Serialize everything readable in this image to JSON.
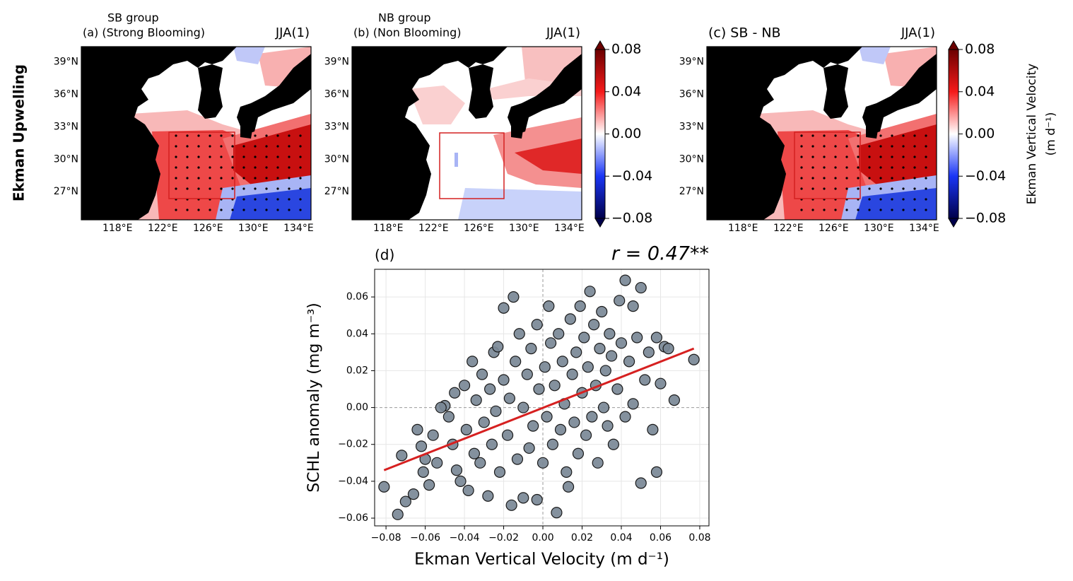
{
  "row_label": "Ekman Upwelling",
  "chart_data": [
    {
      "type": "map",
      "group": "SB group",
      "title": "(a) (Strong Blooming)",
      "season": "JJA(1)",
      "xlim": [
        114.8,
        135.1
      ],
      "ylim": [
        24.4,
        40.4
      ],
      "xticks": [
        {
          "value": 118,
          "label": "118°E"
        },
        {
          "value": 122,
          "label": "122°E"
        },
        {
          "value": 126,
          "label": "126°E"
        },
        {
          "value": 130,
          "label": "130°E"
        },
        {
          "value": 134,
          "label": "134°E"
        }
      ],
      "yticks": [
        {
          "value": 27,
          "label": "27°N"
        },
        {
          "value": 30,
          "label": "30°N"
        },
        {
          "value": 33,
          "label": "33°N"
        },
        {
          "value": 36,
          "label": "36°N"
        },
        {
          "value": 39,
          "label": "39°N"
        }
      ]
    },
    {
      "type": "map",
      "group": "NB group",
      "title": "(b) (Non Blooming)",
      "season": "JJA(1)",
      "xlim": [
        114.8,
        135.1
      ],
      "ylim": [
        24.4,
        40.4
      ],
      "xticks": [
        {
          "value": 118,
          "label": "118°E"
        },
        {
          "value": 122,
          "label": "122°E"
        },
        {
          "value": 126,
          "label": "126°E"
        },
        {
          "value": 130,
          "label": "130°E"
        },
        {
          "value": 134,
          "label": "134°E"
        }
      ],
      "yticks": [
        {
          "value": 27,
          "label": "27°N"
        },
        {
          "value": 30,
          "label": "30°N"
        },
        {
          "value": 33,
          "label": "33°N"
        },
        {
          "value": 36,
          "label": "36°N"
        },
        {
          "value": 39,
          "label": "39°N"
        }
      ]
    },
    {
      "type": "colorbar",
      "ylim": [
        -0.08,
        0.08
      ],
      "yticks": [
        {
          "value": -0.08,
          "label": "−0.08"
        },
        {
          "value": -0.04,
          "label": "−0.04"
        },
        {
          "value": 0,
          "label": "0.00"
        },
        0.04,
        0.08
      ]
    },
    {
      "type": "map",
      "title": "(c) SB - NB",
      "season": "JJA(1)",
      "xlim": [
        114.8,
        135.1
      ],
      "ylim": [
        24.4,
        40.4
      ],
      "xticks": [
        {
          "value": 118,
          "label": "118°E"
        },
        {
          "value": 122,
          "label": "122°E"
        },
        {
          "value": 126,
          "label": "126°E"
        },
        {
          "value": 130,
          "label": "130°E"
        },
        {
          "value": 134,
          "label": "134°E"
        }
      ],
      "yticks": [
        {
          "value": 27,
          "label": "27°N"
        },
        {
          "value": 30,
          "label": "30°N"
        },
        {
          "value": 33,
          "label": "33°N"
        },
        {
          "value": 36,
          "label": "36°N"
        },
        {
          "value": 39,
          "label": "39°N"
        }
      ]
    },
    {
      "type": "colorbar",
      "ylim": [
        -0.08,
        0.08
      ],
      "label": [
        "Ekman Vertical Velocity",
        "(m d⁻¹)"
      ],
      "yticks": [
        {
          "value": -0.08,
          "label": "−0.08"
        },
        {
          "value": -0.04,
          "label": "−0.04"
        },
        {
          "value": 0,
          "label": "0.00"
        },
        0.04,
        0.08
      ]
    },
    {
      "type": "scatter",
      "title": "(d)",
      "annotation": "r = 0.47**",
      "x_label": "Ekman Vertical Velocity (m d⁻¹)",
      "y_label": "SCHL anomaly (mg m⁻³)",
      "color": "#7a8896",
      "fit_color": "#d62020",
      "grid": true,
      "xlim": [
        -0.0858,
        0.0847
      ],
      "ylim": [
        -0.0642,
        0.075
      ],
      "xticks": [
        {
          "value": -0.08,
          "label": "−0.08"
        },
        {
          "value": -0.06,
          "label": "−0.06"
        },
        {
          "value": -0.04,
          "label": "−0.04"
        },
        {
          "value": -0.02,
          "label": "−0.02"
        },
        {
          "value": 0,
          "label": "0.00"
        },
        0.02,
        0.04,
        0.06,
        0.08
      ],
      "yticks": [
        {
          "value": -0.06,
          "label": "−0.06"
        },
        {
          "value": -0.04,
          "label": "−0.04"
        },
        {
          "value": -0.02,
          "label": "−0.02"
        },
        {
          "value": 0,
          "label": "0.00"
        },
        0.02,
        0.04,
        0.06
      ],
      "x": [
        -0.081,
        -0.074,
        -0.07,
        -0.066,
        -0.061,
        -0.072,
        -0.058,
        -0.05,
        -0.052,
        -0.064,
        -0.062,
        -0.06,
        -0.056,
        -0.054,
        -0.048,
        -0.046,
        -0.045,
        -0.044,
        -0.042,
        -0.04,
        -0.039,
        -0.038,
        -0.036,
        -0.035,
        -0.034,
        -0.032,
        -0.031,
        -0.03,
        -0.028,
        -0.027,
        -0.026,
        -0.025,
        -0.024,
        -0.023,
        -0.022,
        -0.02,
        -0.02,
        -0.018,
        -0.017,
        -0.016,
        -0.015,
        -0.014,
        -0.013,
        -0.012,
        -0.01,
        -0.01,
        -0.008,
        -0.007,
        -0.006,
        -0.005,
        -0.003,
        -0.003,
        -0.002,
        0.0,
        0.001,
        0.002,
        0.003,
        0.004,
        0.005,
        0.006,
        0.007,
        0.008,
        0.009,
        0.01,
        0.011,
        0.012,
        0.013,
        0.014,
        0.015,
        0.016,
        0.017,
        0.018,
        0.019,
        0.02,
        0.021,
        0.022,
        0.023,
        0.024,
        0.025,
        0.026,
        0.027,
        0.028,
        0.029,
        0.03,
        0.031,
        0.032,
        0.033,
        0.034,
        0.035,
        0.036,
        0.038,
        0.039,
        0.04,
        0.042,
        0.042,
        0.044,
        0.046,
        0.046,
        0.048,
        0.05,
        0.05,
        0.052,
        0.054,
        0.056,
        0.058,
        0.058,
        0.06,
        0.062,
        0.064,
        0.067,
        0.077
      ],
      "y": [
        -0.043,
        -0.058,
        -0.051,
        -0.047,
        -0.035,
        -0.026,
        -0.042,
        0.001,
        0.0,
        -0.012,
        -0.021,
        -0.028,
        -0.015,
        -0.03,
        -0.005,
        -0.02,
        0.008,
        -0.034,
        -0.04,
        0.012,
        -0.012,
        -0.045,
        0.025,
        -0.025,
        0.004,
        -0.03,
        0.018,
        -0.008,
        -0.048,
        0.01,
        -0.02,
        0.03,
        -0.002,
        0.033,
        -0.035,
        0.054,
        0.015,
        -0.015,
        0.005,
        -0.053,
        0.06,
        0.025,
        -0.028,
        0.04,
        -0.049,
        0.0,
        0.018,
        -0.022,
        0.032,
        -0.01,
        -0.05,
        0.045,
        0.01,
        -0.03,
        0.022,
        -0.005,
        0.055,
        0.035,
        -0.02,
        0.012,
        -0.057,
        0.04,
        -0.012,
        0.025,
        0.002,
        -0.035,
        -0.043,
        0.048,
        0.018,
        -0.008,
        0.03,
        -0.025,
        0.055,
        0.008,
        0.038,
        -0.015,
        0.022,
        0.063,
        -0.005,
        0.045,
        0.012,
        -0.03,
        0.032,
        0.052,
        0.0,
        0.02,
        -0.01,
        0.04,
        0.028,
        -0.02,
        0.01,
        0.058,
        0.035,
        0.069,
        -0.005,
        0.025,
        0.055,
        0.002,
        0.038,
        0.065,
        -0.041,
        0.015,
        0.03,
        -0.012,
        -0.035,
        0.038,
        0.013,
        0.033,
        0.032,
        0.004,
        0.026
      ],
      "fit": {
        "x": [
          -0.081,
          0.077
        ],
        "y": [
          -0.034,
          0.032
        ]
      }
    }
  ]
}
